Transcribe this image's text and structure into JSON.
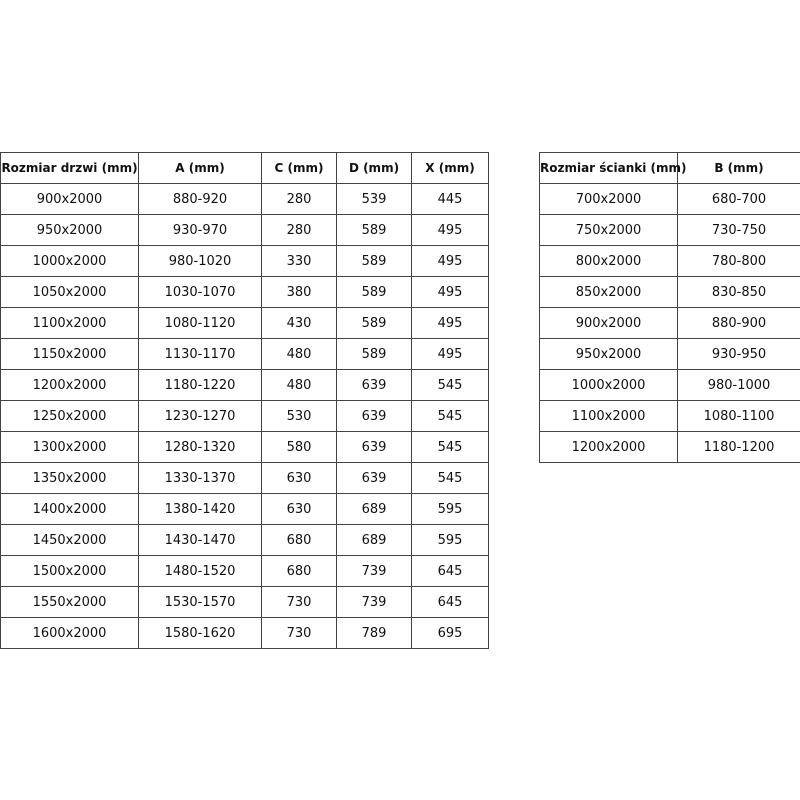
{
  "doors_table": {
    "headers": [
      "Rozmiar drzwi (mm)",
      "A (mm)",
      "C (mm)",
      "D (mm)",
      "X (mm)"
    ],
    "rows": [
      [
        "900x2000",
        "880-920",
        "280",
        "539",
        "445"
      ],
      [
        "950x2000",
        "930-970",
        "280",
        "589",
        "495"
      ],
      [
        "1000x2000",
        "980-1020",
        "330",
        "589",
        "495"
      ],
      [
        "1050x2000",
        "1030-1070",
        "380",
        "589",
        "495"
      ],
      [
        "1100x2000",
        "1080-1120",
        "430",
        "589",
        "495"
      ],
      [
        "1150x2000",
        "1130-1170",
        "480",
        "589",
        "495"
      ],
      [
        "1200x2000",
        "1180-1220",
        "480",
        "639",
        "545"
      ],
      [
        "1250x2000",
        "1230-1270",
        "530",
        "639",
        "545"
      ],
      [
        "1300x2000",
        "1280-1320",
        "580",
        "639",
        "545"
      ],
      [
        "1350x2000",
        "1330-1370",
        "630",
        "639",
        "545"
      ],
      [
        "1400x2000",
        "1380-1420",
        "630",
        "689",
        "595"
      ],
      [
        "1450x2000",
        "1430-1470",
        "680",
        "689",
        "595"
      ],
      [
        "1500x2000",
        "1480-1520",
        "680",
        "739",
        "645"
      ],
      [
        "1550x2000",
        "1530-1570",
        "730",
        "739",
        "645"
      ],
      [
        "1600x2000",
        "1580-1620",
        "730",
        "789",
        "695"
      ]
    ]
  },
  "panel_table": {
    "headers": [
      "Rozmiar ścianki (mm)",
      "B (mm)"
    ],
    "rows": [
      [
        "700x2000",
        "680-700"
      ],
      [
        "750x2000",
        "730-750"
      ],
      [
        "800x2000",
        "780-800"
      ],
      [
        "850x2000",
        "830-850"
      ],
      [
        "900x2000",
        "880-900"
      ],
      [
        "950x2000",
        "930-950"
      ],
      [
        "1000x2000",
        "980-1000"
      ],
      [
        "1100x2000",
        "1080-1100"
      ],
      [
        "1200x2000",
        "1180-1200"
      ]
    ]
  }
}
